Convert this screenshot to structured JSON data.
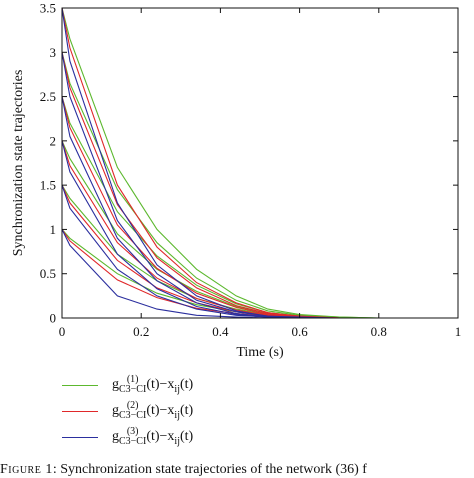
{
  "chart_data": {
    "type": "line",
    "title": "",
    "xlabel": "Time (s)",
    "ylabel": "Synchronization state trajectories",
    "xlim": [
      0,
      1
    ],
    "ylim": [
      0,
      3.5
    ],
    "xticks": [
      "0",
      "0.2",
      "0.4",
      "0.6",
      "0.8",
      "1"
    ],
    "yticks": [
      "0",
      "0.5",
      "1",
      "1.5",
      "2",
      "2.5",
      "3",
      "3.5"
    ],
    "grid": false,
    "legend_position": "below",
    "x": [
      0,
      0.02,
      0.14,
      0.24,
      0.34,
      0.44,
      0.52,
      0.6,
      0.7,
      0.8,
      1.0
    ],
    "series": [
      {
        "group": 1,
        "color": "#5cb82e",
        "values": [
          3.5,
          3.15,
          1.7,
          1.0,
          0.55,
          0.25,
          0.1,
          0.04,
          0.01,
          0.0,
          0.0
        ]
      },
      {
        "group": 1,
        "color": "#5cb82e",
        "values": [
          3.0,
          2.65,
          1.45,
          0.85,
          0.45,
          0.2,
          0.08,
          0.03,
          0.01,
          0.0,
          0.0
        ]
      },
      {
        "group": 1,
        "color": "#5cb82e",
        "values": [
          2.5,
          2.2,
          1.2,
          0.7,
          0.37,
          0.16,
          0.06,
          0.02,
          0.0,
          0.0,
          0.0
        ]
      },
      {
        "group": 1,
        "color": "#5cb82e",
        "values": [
          2.0,
          1.8,
          0.95,
          0.55,
          0.3,
          0.13,
          0.05,
          0.02,
          0.0,
          0.0,
          0.0
        ]
      },
      {
        "group": 1,
        "color": "#5cb82e",
        "values": [
          1.5,
          1.35,
          0.72,
          0.42,
          0.22,
          0.1,
          0.04,
          0.01,
          0.0,
          0.0,
          0.0
        ]
      },
      {
        "group": 1,
        "color": "#5cb82e",
        "values": [
          1.0,
          0.9,
          0.5,
          0.28,
          0.15,
          0.07,
          0.03,
          0.01,
          0.0,
          0.0,
          0.0
        ]
      },
      {
        "group": 2,
        "color": "#e0282a",
        "values": [
          3.5,
          3.05,
          1.5,
          0.8,
          0.4,
          0.17,
          0.06,
          0.02,
          0.0,
          0.0,
          0.0
        ]
      },
      {
        "group": 2,
        "color": "#e0282a",
        "values": [
          3.0,
          2.6,
          1.28,
          0.68,
          0.34,
          0.14,
          0.05,
          0.02,
          0.0,
          0.0,
          0.0
        ]
      },
      {
        "group": 2,
        "color": "#e0282a",
        "values": [
          2.5,
          2.15,
          1.05,
          0.56,
          0.28,
          0.12,
          0.04,
          0.01,
          0.0,
          0.0,
          0.0
        ]
      },
      {
        "group": 2,
        "color": "#e0282a",
        "values": [
          2.0,
          1.72,
          0.85,
          0.45,
          0.22,
          0.09,
          0.03,
          0.01,
          0.0,
          0.0,
          0.0
        ]
      },
      {
        "group": 2,
        "color": "#e0282a",
        "values": [
          1.5,
          1.3,
          0.65,
          0.34,
          0.17,
          0.07,
          0.02,
          0.01,
          0.0,
          0.0,
          0.0
        ]
      },
      {
        "group": 2,
        "color": "#e0282a",
        "values": [
          1.0,
          0.87,
          0.43,
          0.23,
          0.11,
          0.05,
          0.02,
          0.0,
          0.0,
          0.0,
          0.0
        ]
      },
      {
        "group": 3,
        "color": "#2b2f9e",
        "values": [
          3.5,
          2.9,
          1.3,
          0.6,
          0.25,
          0.08,
          0.02,
          0.01,
          0.0,
          0.0,
          0.0
        ]
      },
      {
        "group": 3,
        "color": "#2b2f9e",
        "values": [
          3.0,
          2.5,
          1.1,
          0.5,
          0.2,
          0.07,
          0.02,
          0.0,
          0.0,
          0.0,
          0.0
        ]
      },
      {
        "group": 3,
        "color": "#2b2f9e",
        "values": [
          2.5,
          2.05,
          0.9,
          0.42,
          0.17,
          0.05,
          0.01,
          0.0,
          0.0,
          0.0,
          0.0
        ]
      },
      {
        "group": 3,
        "color": "#2b2f9e",
        "values": [
          2.0,
          1.65,
          0.72,
          0.33,
          0.13,
          0.04,
          0.01,
          0.0,
          0.0,
          0.0,
          0.0
        ]
      },
      {
        "group": 3,
        "color": "#2b2f9e",
        "values": [
          1.5,
          1.24,
          0.55,
          0.25,
          0.1,
          0.03,
          0.01,
          0.0,
          0.0,
          0.0,
          0.0
        ]
      },
      {
        "group": 3,
        "color": "#2b2f9e",
        "values": [
          1.0,
          0.82,
          0.25,
          0.1,
          0.03,
          0.01,
          0.0,
          0.0,
          0.0,
          0.0,
          0.0
        ]
      }
    ],
    "legend": [
      {
        "color": "#5cb82e",
        "g": "g",
        "sup": "(1)",
        "sub": "C3−CI",
        "rest": "(t)−x",
        "rest_sub": "ij",
        "tail": "(t)"
      },
      {
        "color": "#e0282a",
        "g": "g",
        "sup": "(2)",
        "sub": "C3−CI",
        "rest": "(t)−x",
        "rest_sub": "ij",
        "tail": "(t)"
      },
      {
        "color": "#2b2f9e",
        "g": "g",
        "sup": "(3)",
        "sub": "C3−CI",
        "rest": "(t)−x",
        "rest_sub": "ij",
        "tail": "(t)"
      }
    ]
  },
  "caption": {
    "label": "Figure 1",
    "text": ": Synchronization state trajectories of the network (36) f"
  }
}
